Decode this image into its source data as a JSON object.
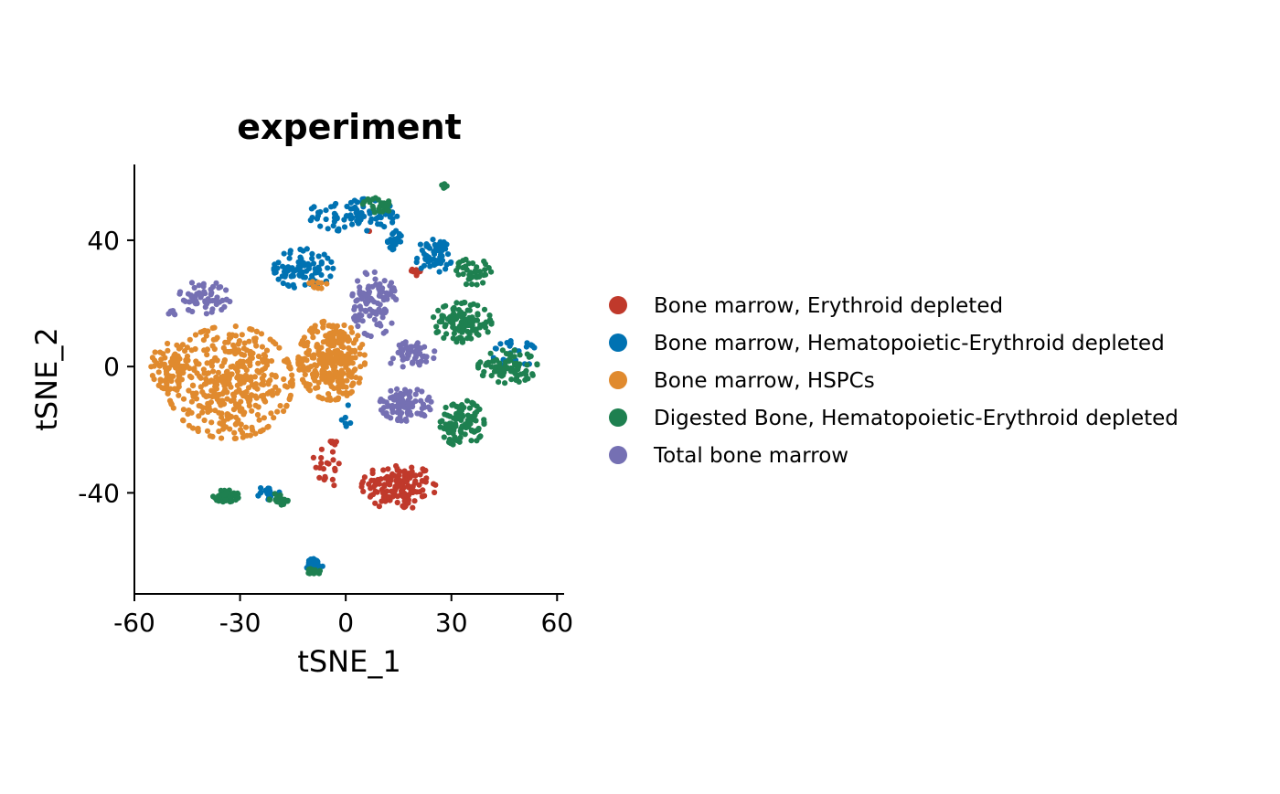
{
  "chart_data": {
    "type": "scatter",
    "title": "experiment",
    "xlabel": "tSNE_1",
    "ylabel": "tSNE_2",
    "xlim": [
      -60,
      62
    ],
    "ylim": [
      -72,
      64
    ],
    "x_ticks": [
      -60,
      -30,
      0,
      30,
      60
    ],
    "x_tick_labels": [
      "-60",
      "-30",
      "0",
      "30",
      "60"
    ],
    "y_ticks": [
      -40,
      0,
      40
    ],
    "y_tick_labels": [
      "-40",
      "0",
      "40"
    ],
    "grid": false,
    "legend_position": "right",
    "legend": [
      {
        "name": "Bone marrow, Erythroid depleted",
        "color": "#C0392B"
      },
      {
        "name": "Bone marrow, Hematopoietic-Erythroid depleted",
        "color": "#0072B2"
      },
      {
        "name": "Bone marrow, HSPCs",
        "color": "#E08A2E"
      },
      {
        "name": "Digested Bone, Hematopoietic-Erythroid depleted",
        "color": "#1E8050"
      },
      {
        "name": "Total bone marrow",
        "color": "#7570B3"
      }
    ],
    "series": [
      {
        "name": "Bone marrow, Erythroid depleted",
        "clusters": [
          {
            "cx": 15,
            "cy": -38,
            "rx": 10,
            "ry": 7,
            "n": 140
          },
          {
            "cx": -5,
            "cy": -30,
            "rx": 4,
            "ry": 8,
            "n": 25
          },
          {
            "cx": 20,
            "cy": 30,
            "rx": 1.5,
            "ry": 1.5,
            "n": 8
          },
          {
            "cx": 7,
            "cy": 43,
            "rx": 0.5,
            "ry": 0.5,
            "n": 1
          }
        ]
      },
      {
        "name": "Bone marrow, Hematopoietic-Erythroid depleted",
        "clusters": [
          {
            "cx": 2,
            "cy": 48,
            "rx": 12,
            "ry": 5,
            "n": 90
          },
          {
            "cx": -12,
            "cy": 31,
            "rx": 8,
            "ry": 6,
            "n": 90
          },
          {
            "cx": 25,
            "cy": 35,
            "rx": 5,
            "ry": 5,
            "n": 60
          },
          {
            "cx": 14,
            "cy": 40,
            "rx": 2,
            "ry": 3,
            "n": 25
          },
          {
            "cx": 48,
            "cy": 4,
            "rx": 6,
            "ry": 4,
            "n": 25
          },
          {
            "cx": -9,
            "cy": -63,
            "rx": 2.5,
            "ry": 2,
            "n": 40
          },
          {
            "cx": -22,
            "cy": -40,
            "rx": 3,
            "ry": 2,
            "n": 20
          },
          {
            "cx": 0,
            "cy": -15,
            "rx": 1.5,
            "ry": 5,
            "n": 6
          }
        ]
      },
      {
        "name": "Bone marrow, HSPCs",
        "clusters": [
          {
            "cx": -33,
            "cy": -5,
            "rx": 17,
            "ry": 17,
            "n": 420
          },
          {
            "cx": -4,
            "cy": 2,
            "rx": 9,
            "ry": 12,
            "n": 300
          },
          {
            "cx": -50,
            "cy": 0,
            "rx": 5,
            "ry": 7,
            "n": 60
          },
          {
            "cx": -8,
            "cy": 25,
            "rx": 3,
            "ry": 2,
            "n": 10
          }
        ]
      },
      {
        "name": "Digested Bone, Hematopoietic-Erythroid depleted",
        "clusters": [
          {
            "cx": 33,
            "cy": 14,
            "rx": 8,
            "ry": 6,
            "n": 120
          },
          {
            "cx": 46,
            "cy": 0,
            "rx": 8,
            "ry": 5,
            "n": 80
          },
          {
            "cx": 33,
            "cy": -18,
            "rx": 6,
            "ry": 7,
            "n": 110
          },
          {
            "cx": 36,
            "cy": 30,
            "rx": 5,
            "ry": 4,
            "n": 40
          },
          {
            "cx": -34,
            "cy": -41,
            "rx": 3.5,
            "ry": 1.8,
            "n": 45
          },
          {
            "cx": -19,
            "cy": -42,
            "rx": 2.5,
            "ry": 1.8,
            "n": 30
          },
          {
            "cx": -9,
            "cy": -65,
            "rx": 2,
            "ry": 1,
            "n": 15
          },
          {
            "cx": 9,
            "cy": 51,
            "rx": 4,
            "ry": 2.5,
            "n": 25
          },
          {
            "cx": 28,
            "cy": 57,
            "rx": 0.8,
            "ry": 0.8,
            "n": 5
          }
        ]
      },
      {
        "name": "Total bone marrow",
        "clusters": [
          {
            "cx": -40,
            "cy": 22,
            "rx": 7,
            "ry": 5,
            "n": 60
          },
          {
            "cx": 8,
            "cy": 20,
            "rx": 6,
            "ry": 10,
            "n": 110
          },
          {
            "cx": 17,
            "cy": -12,
            "rx": 7,
            "ry": 5,
            "n": 90
          },
          {
            "cx": 18,
            "cy": 4,
            "rx": 7,
            "ry": 4,
            "n": 50
          },
          {
            "cx": -49,
            "cy": 17,
            "rx": 2,
            "ry": 2,
            "n": 6
          }
        ]
      }
    ]
  }
}
